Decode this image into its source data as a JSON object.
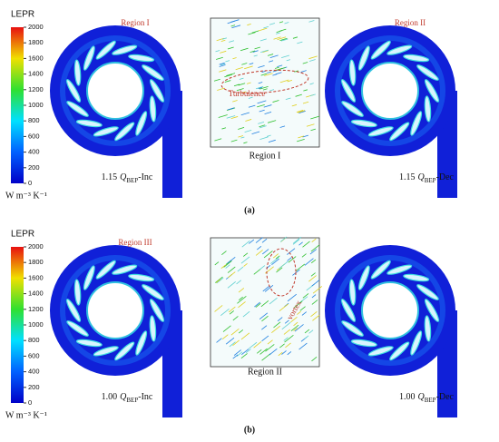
{
  "panels": [
    {
      "label": "(a)",
      "colorbar": {
        "title": "LEPR",
        "unit": "W m⁻³ K⁻¹",
        "lim": [
          0,
          2000
        ],
        "ticks": [
          0,
          200,
          400,
          600,
          800,
          1000,
          1200,
          1400,
          1600,
          1800,
          2000
        ]
      },
      "left": {
        "flow": "1.15",
        "symbol": "Q",
        "subscript": "BEP",
        "suffix": "-Inc",
        "region": "Region I"
      },
      "inset": {
        "caption": "Region I",
        "annotation": "Turbulence"
      },
      "right": {
        "flow": "1.15",
        "symbol": "Q",
        "subscript": "BEP",
        "suffix": "-Dec",
        "region": "Region II"
      }
    },
    {
      "label": "(b)",
      "colorbar": {
        "title": "LEPR",
        "unit": "W m⁻³ K⁻¹",
        "lim": [
          0,
          2000
        ],
        "ticks": [
          0,
          200,
          400,
          600,
          800,
          1000,
          1200,
          1400,
          1600,
          1800,
          2000
        ]
      },
      "left": {
        "flow": "1.00",
        "symbol": "Q",
        "subscript": "BEP",
        "suffix": "-Inc",
        "region": "Region III"
      },
      "inset": {
        "caption": "Region II",
        "annotation": "vortex"
      },
      "right": {
        "flow": "1.00",
        "symbol": "Q",
        "subscript": "BEP",
        "suffix": "-Dec"
      }
    }
  ]
}
